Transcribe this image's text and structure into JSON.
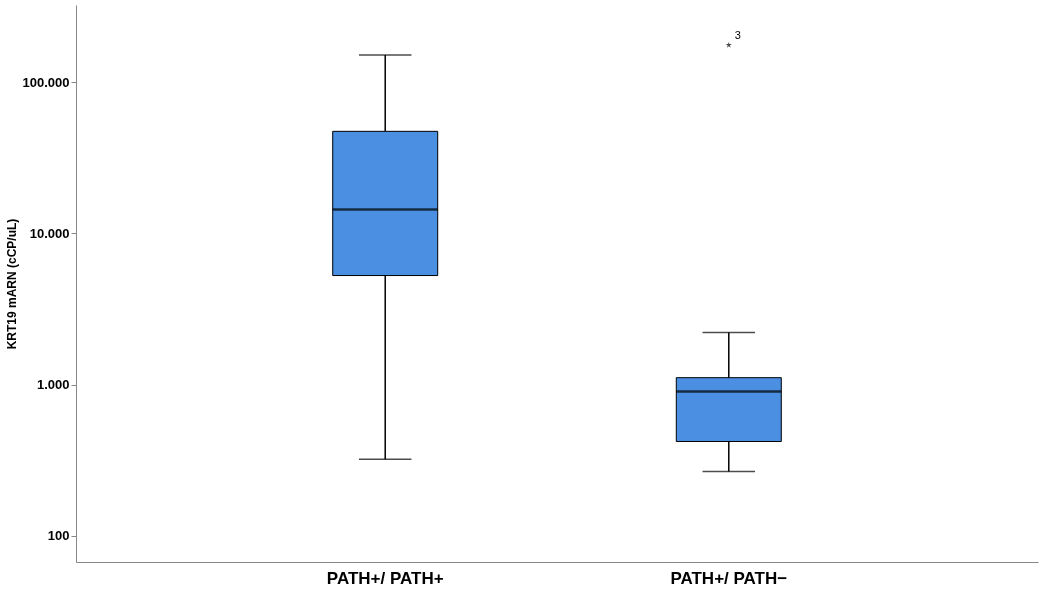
{
  "chart_data": {
    "type": "box",
    "ylabel": "KRT19 mARN (cCP/uL)",
    "categories": [
      "PATH+/ PATH+",
      "PATH+/ PATH−"
    ],
    "boxes": [
      {
        "low": 320,
        "q1": 5260,
        "median": 14400,
        "q3": 47300,
        "high": 151000
      },
      {
        "low": 266,
        "q1": 420,
        "median": 900,
        "q3": 1110,
        "high": 2210,
        "outliers": [
          176000
        ]
      }
    ],
    "color": "#4a8fe2",
    "log": true,
    "ylim": [
      67,
      324000
    ],
    "yticks": [
      100,
      {
        "value": 1000,
        "label": "1.000"
      },
      {
        "value": 10000,
        "label": "10.000"
      },
      {
        "value": 100000,
        "label": "100.000"
      }
    ],
    "grid": false,
    "marker": "star",
    "annotations": [
      "3"
    ]
  }
}
